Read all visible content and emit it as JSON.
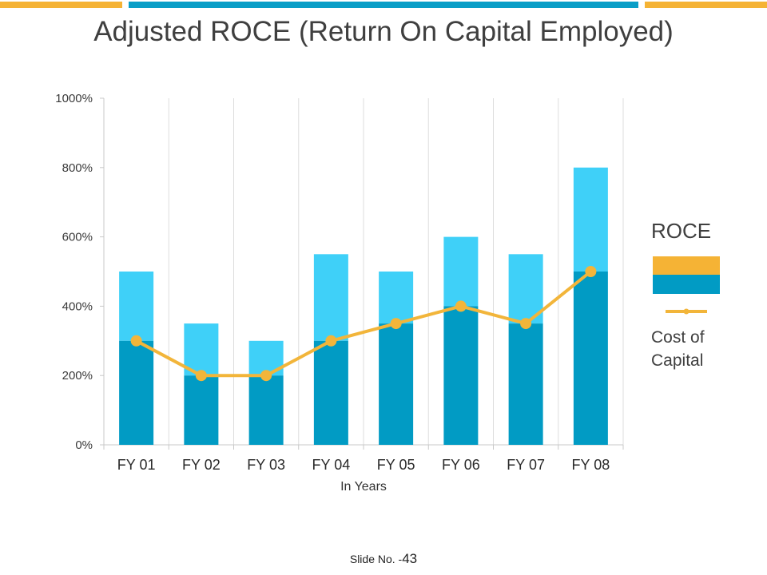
{
  "slide": {
    "title": "Adjusted ROCE (Return On Capital Employed)",
    "footer_label": "Slide No. -",
    "footer_number": "43"
  },
  "colors": {
    "accent_yellow": "#f5b335",
    "accent_blue": "#0a9ec7",
    "bar_dark": "#019bc4",
    "bar_light": "#3fd0f8",
    "line": "#f2b53a",
    "grid": "#dddddd"
  },
  "legend": {
    "bar_label": "ROCE",
    "line_label_line1": "Cost of",
    "line_label_line2": "Capital"
  },
  "chart_data": {
    "type": "bar",
    "stacked": true,
    "title": "Adjusted ROCE (Return On Capital Employed)",
    "xlabel": "In Years",
    "ylabel": "",
    "ylim": [
      0,
      1000
    ],
    "yticks": [
      0,
      200,
      400,
      600,
      800,
      1000
    ],
    "ytick_labels": [
      "0%",
      "200%",
      "400%",
      "600%",
      "800%",
      "1000%"
    ],
    "categories": [
      "FY 01",
      "FY 02",
      "FY 03",
      "FY 04",
      "FY 05",
      "FY 06",
      "FY 07",
      "FY 08"
    ],
    "series": [
      {
        "name": "ROCE (base)",
        "kind": "bar",
        "values": [
          300,
          200,
          200,
          300,
          350,
          400,
          350,
          500
        ]
      },
      {
        "name": "ROCE (upper)",
        "kind": "bar",
        "values": [
          200,
          150,
          100,
          250,
          150,
          200,
          200,
          300
        ]
      },
      {
        "name": "Cost of Capital",
        "kind": "line",
        "values": [
          300,
          200,
          200,
          300,
          350,
          400,
          350,
          500
        ]
      }
    ],
    "grid": "vertical",
    "legend": "right"
  }
}
